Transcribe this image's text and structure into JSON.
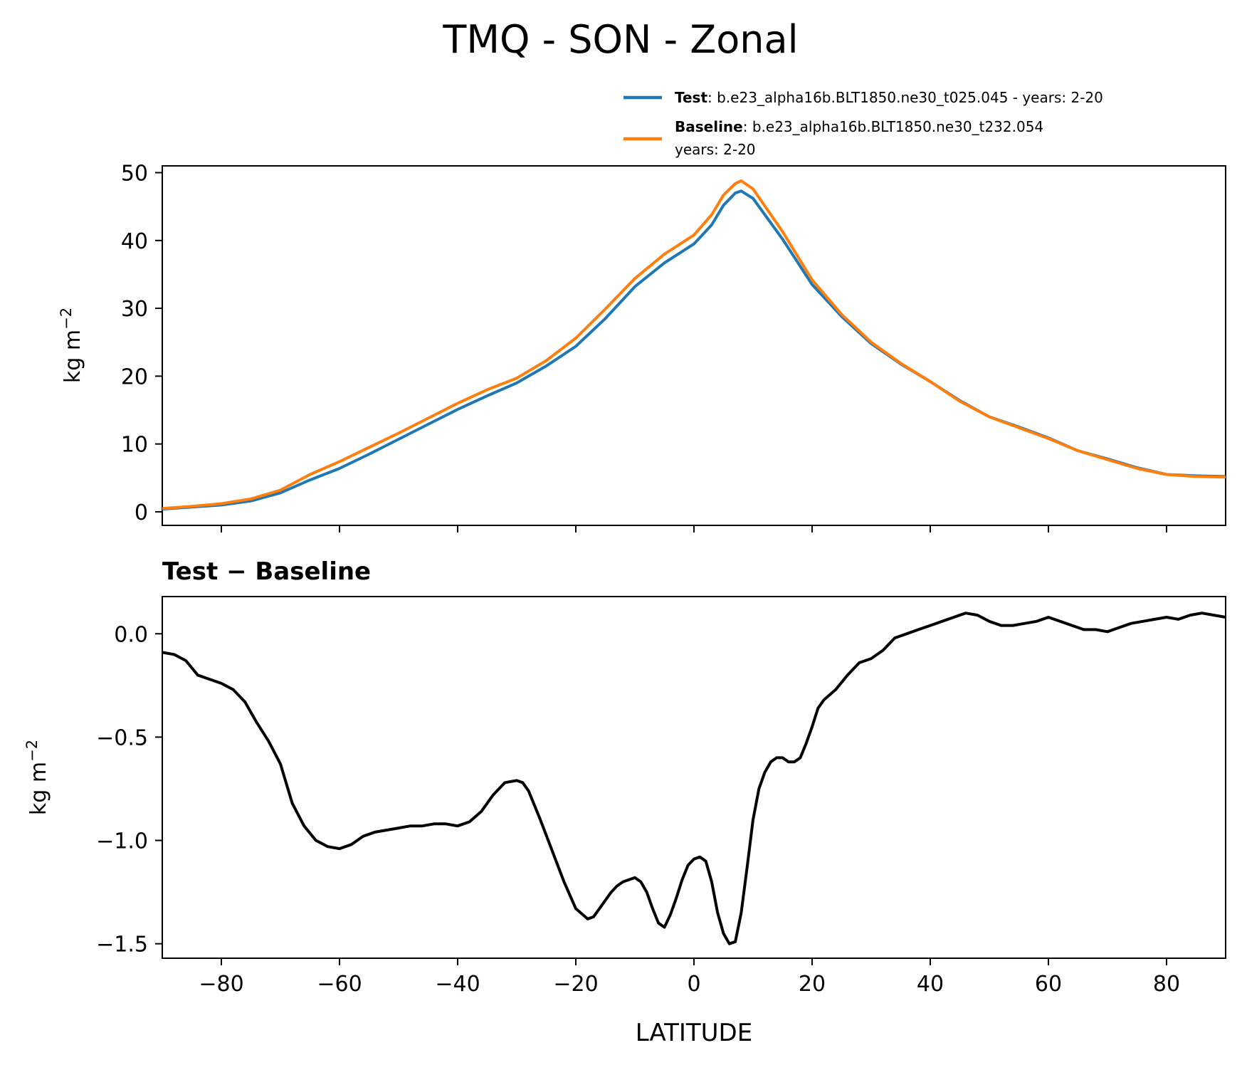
{
  "title": "TMQ - SON - Zonal",
  "colors": {
    "test": "#1f77b4",
    "baseline": "#ff7f0e",
    "diff": "#000000"
  },
  "legend": {
    "test": {
      "bold": "Test",
      "text": ": b.e23_alpha16b.BLT1850.ne30_t025.045 - years: 2-20"
    },
    "baseline": {
      "bold": "Baseline",
      "text": ": b.e23_alpha16b.BLT1850.ne30_t232.054",
      "text2": "years: 2-20"
    }
  },
  "chart_data": [
    {
      "type": "line",
      "ylabel": "kg m",
      "ylabel_sup": "−2",
      "xlim": [
        -90,
        90
      ],
      "ylim": [
        -2,
        51
      ],
      "yticks": [
        0,
        10,
        20,
        30,
        40,
        50
      ],
      "ytick_labels": [
        "0",
        "10",
        "20",
        "30",
        "40",
        "50"
      ],
      "xticks": [
        -80,
        -60,
        -40,
        -20,
        0,
        20,
        40,
        60,
        80
      ],
      "x": [
        -90,
        -85,
        -80,
        -75,
        -70,
        -65,
        -60,
        -55,
        -50,
        -45,
        -40,
        -35,
        -30,
        -25,
        -20,
        -15,
        -10,
        -5,
        0,
        3,
        5,
        7,
        8,
        10,
        15,
        20,
        25,
        30,
        35,
        40,
        45,
        50,
        55,
        60,
        65,
        70,
        75,
        80,
        85,
        90
      ],
      "series": [
        {
          "name": "Test",
          "values": [
            0.4,
            0.7,
            1.0,
            1.6,
            2.8,
            4.7,
            6.4,
            8.5,
            10.7,
            12.9,
            15.1,
            17.1,
            19.0,
            21.5,
            24.4,
            28.5,
            33.2,
            36.7,
            39.5,
            42.3,
            45.2,
            47.0,
            47.3,
            46.2,
            40.2,
            33.5,
            28.8,
            24.8,
            21.8,
            19.2,
            16.4,
            14.0,
            12.5,
            10.9,
            9.0,
            7.8,
            6.5,
            5.5,
            5.3,
            5.2
          ]
        },
        {
          "name": "Baseline",
          "values": [
            0.5,
            0.8,
            1.2,
            1.9,
            3.2,
            5.5,
            7.4,
            9.5,
            11.6,
            13.8,
            16.0,
            18.0,
            19.7,
            22.3,
            25.6,
            29.9,
            34.4,
            38.0,
            40.8,
            43.8,
            46.7,
            48.4,
            48.8,
            47.6,
            41.3,
            34.2,
            29.1,
            25.0,
            21.9,
            19.2,
            16.3,
            14.0,
            12.4,
            10.8,
            9.0,
            7.7,
            6.4,
            5.5,
            5.2,
            5.1
          ]
        }
      ]
    },
    {
      "type": "line",
      "title": "Test − Baseline",
      "ylabel": "kg m",
      "ylabel_sup": "−2",
      "xlabel": "LATITUDE",
      "xlim": [
        -90,
        90
      ],
      "ylim": [
        -1.57,
        0.18
      ],
      "yticks": [
        0.0,
        -0.5,
        -1.0,
        -1.5
      ],
      "ytick_labels": [
        "0.0",
        "−0.5",
        "−1.0",
        "−1.5"
      ],
      "xticks": [
        -80,
        -60,
        -40,
        -20,
        0,
        20,
        40,
        60,
        80
      ],
      "xtick_labels": [
        "−80",
        "−60",
        "−40",
        "−20",
        "0",
        "20",
        "40",
        "60",
        "80"
      ],
      "x": [
        -90,
        -88,
        -86,
        -84,
        -82,
        -80,
        -78,
        -76,
        -74,
        -72,
        -70,
        -68,
        -66,
        -64,
        -62,
        -60,
        -58,
        -56,
        -54,
        -52,
        -50,
        -48,
        -46,
        -44,
        -42,
        -40,
        -38,
        -36,
        -34,
        -32,
        -30,
        -29,
        -28,
        -27,
        -26,
        -24,
        -22,
        -20,
        -18,
        -17,
        -16,
        -14,
        -13,
        -12,
        -10,
        -9,
        -8,
        -7,
        -6,
        -5,
        -4,
        -3,
        -2,
        -1,
        0,
        1,
        2,
        3,
        4,
        5,
        6,
        7,
        8,
        9,
        10,
        11,
        12,
        13,
        14,
        15,
        16,
        17,
        18,
        19,
        20,
        21,
        22,
        24,
        26,
        28,
        30,
        32,
        34,
        36,
        38,
        40,
        42,
        44,
        46,
        48,
        50,
        52,
        54,
        56,
        58,
        60,
        62,
        64,
        66,
        68,
        70,
        72,
        74,
        76,
        78,
        80,
        82,
        84,
        86,
        88,
        90
      ],
      "values": [
        -0.09,
        -0.1,
        -0.13,
        -0.2,
        -0.22,
        -0.24,
        -0.27,
        -0.33,
        -0.43,
        -0.52,
        -0.63,
        -0.82,
        -0.93,
        -1.0,
        -1.03,
        -1.04,
        -1.02,
        -0.98,
        -0.96,
        -0.95,
        -0.94,
        -0.93,
        -0.93,
        -0.92,
        -0.92,
        -0.93,
        -0.91,
        -0.86,
        -0.78,
        -0.72,
        -0.71,
        -0.72,
        -0.76,
        -0.83,
        -0.9,
        -1.05,
        -1.2,
        -1.33,
        -1.38,
        -1.37,
        -1.33,
        -1.25,
        -1.22,
        -1.2,
        -1.18,
        -1.2,
        -1.25,
        -1.33,
        -1.4,
        -1.42,
        -1.36,
        -1.28,
        -1.19,
        -1.12,
        -1.09,
        -1.08,
        -1.1,
        -1.2,
        -1.35,
        -1.45,
        -1.5,
        -1.49,
        -1.35,
        -1.13,
        -0.9,
        -0.75,
        -0.67,
        -0.62,
        -0.6,
        -0.6,
        -0.62,
        -0.62,
        -0.6,
        -0.53,
        -0.45,
        -0.36,
        -0.32,
        -0.27,
        -0.2,
        -0.14,
        -0.12,
        -0.08,
        -0.02,
        0.0,
        0.02,
        0.04,
        0.06,
        0.08,
        0.1,
        0.09,
        0.06,
        0.04,
        0.04,
        0.05,
        0.06,
        0.08,
        0.06,
        0.04,
        0.02,
        0.02,
        0.01,
        0.03,
        0.05,
        0.06,
        0.07,
        0.08,
        0.07,
        0.09,
        0.1,
        0.09,
        0.08
      ]
    }
  ]
}
